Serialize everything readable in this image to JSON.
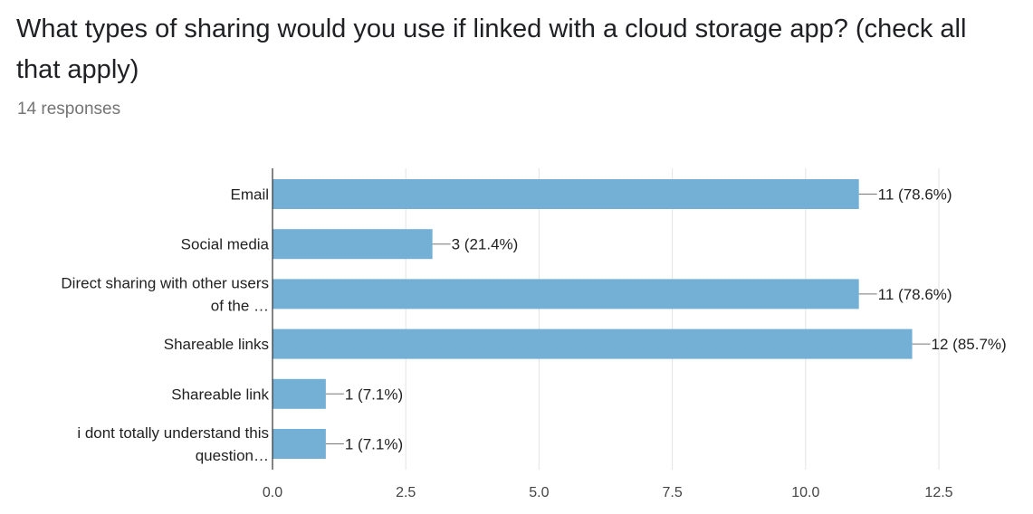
{
  "header": {
    "title": "What types of sharing would you use if linked with a cloud storage app? (check all that apply)",
    "responses": "14 responses"
  },
  "colors": {
    "bar": "#74b0d6",
    "grid": "#e3e3e3",
    "axis": "#333333",
    "leader": "#777777"
  },
  "chart_data": {
    "type": "bar",
    "orientation": "horizontal",
    "categories": [
      [
        "Email"
      ],
      [
        "Social media"
      ],
      [
        "Direct sharing with other users",
        "of the …"
      ],
      [
        "Shareable links"
      ],
      [
        "Shareable link"
      ],
      [
        "i dont totally understand this",
        "question…"
      ]
    ],
    "values": [
      11,
      3,
      11,
      12,
      1,
      1
    ],
    "value_labels": [
      "11 (78.6%)",
      "3 (21.4%)",
      "11 (78.6%)",
      "12 (85.7%)",
      "1 (7.1%)",
      "1 (7.1%)"
    ],
    "xticks": [
      0,
      2.5,
      5,
      7.5,
      10,
      12.5
    ],
    "xtick_labels": [
      "0.0",
      "2.5",
      "5.0",
      "7.5",
      "10.0",
      "12.5"
    ],
    "xlim": [
      0,
      12.5
    ],
    "grid": true,
    "legend": "none"
  }
}
